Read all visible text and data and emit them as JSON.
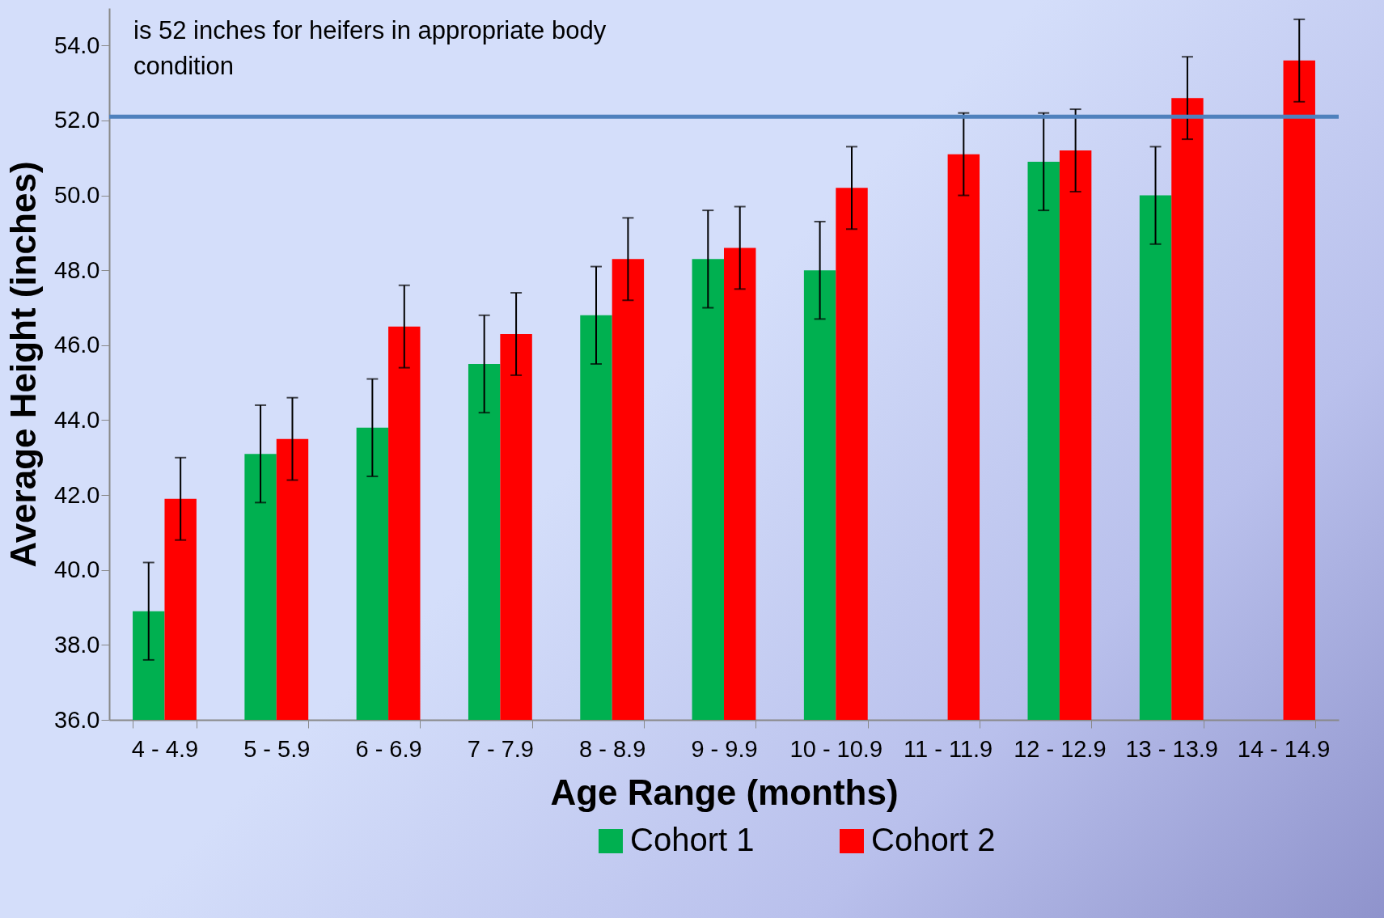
{
  "chart_data": {
    "type": "bar",
    "xlabel": "Age Range (months)",
    "ylabel": "Average Height (inches)",
    "categories": [
      "4 - 4.9",
      "5 - 5.9",
      "6 - 6.9",
      "7 - 7.9",
      "8 - 8.9",
      "9 - 9.9",
      "10 - 10.9",
      "11 - 11.9",
      "12 - 12.9",
      "13 - 13.9",
      "14 - 14.9"
    ],
    "series": [
      {
        "name": "Cohort 1",
        "color": "#00b050",
        "values": [
          38.9,
          43.1,
          43.8,
          45.5,
          46.8,
          48.3,
          48.0,
          null,
          50.9,
          50.0,
          null
        ],
        "errors": [
          1.3,
          1.3,
          1.3,
          1.3,
          1.3,
          1.3,
          1.3,
          null,
          1.3,
          1.3,
          null
        ]
      },
      {
        "name": "Cohort 2",
        "color": "#ff0000",
        "values": [
          41.9,
          43.5,
          46.5,
          46.3,
          48.3,
          48.6,
          50.2,
          51.1,
          51.2,
          52.6,
          53.6
        ],
        "errors": [
          1.1,
          1.1,
          1.1,
          1.1,
          1.1,
          1.1,
          1.1,
          1.1,
          1.1,
          1.1,
          1.1
        ]
      }
    ],
    "ylim": [
      36,
      55
    ],
    "yticks": [
      {
        "value": 36,
        "label": "36.0"
      },
      {
        "value": 38,
        "label": "38.0"
      },
      {
        "value": 40,
        "label": "40.0"
      },
      {
        "value": 42,
        "label": "42.0"
      },
      {
        "value": 44,
        "label": "44.0"
      },
      {
        "value": 46,
        "label": "46.0"
      },
      {
        "value": 48,
        "label": "48.0"
      },
      {
        "value": 50,
        "label": "50.0"
      },
      {
        "value": 52,
        "label": "52.0"
      },
      {
        "value": 54,
        "label": "54.0"
      }
    ],
    "ref_lines": [
      {
        "axis": "y",
        "value": 52.1,
        "color": "#4f81bd"
      }
    ],
    "annotations": [
      "is 52 inches for heifers in appropriate body condition"
    ],
    "legend": "bottom",
    "grid": false
  }
}
